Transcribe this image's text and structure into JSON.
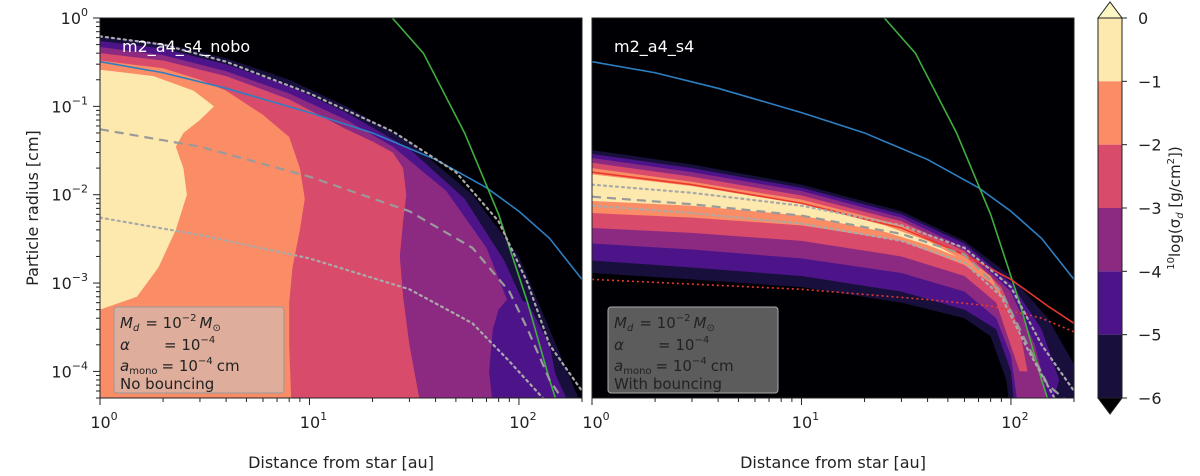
{
  "chart_data": {
    "type": "heatmap",
    "panels": [
      {
        "id": "left",
        "label": "m2_a4_s4_nobo",
        "info": {
          "md_label": "M",
          "md_sub": "d",
          "md_value": "= 10",
          "md_exp": "−2",
          "md_unit": "M",
          "md_unit_sub": "⊙",
          "alpha_label": "α",
          "alpha_value": "= 10",
          "alpha_exp": "−4",
          "amono_label": "a",
          "amono_sub": "mono",
          "amono_value": "= 10",
          "amono_exp": "−4",
          "amono_unit": "cm",
          "note": "No bouncing"
        }
      },
      {
        "id": "right",
        "label": "m2_a4_s4",
        "info": {
          "md_label": "M",
          "md_sub": "d",
          "md_value": "= 10",
          "md_exp": "−2",
          "md_unit": "M",
          "md_unit_sub": "⊙",
          "alpha_label": "α",
          "alpha_value": "= 10",
          "alpha_exp": "−4",
          "amono_label": "a",
          "amono_sub": "mono",
          "amono_value": "= 10",
          "amono_exp": "−4",
          "amono_unit": "cm",
          "note": "With bouncing"
        }
      }
    ],
    "x_axis": {
      "label": "Distance from star [au]",
      "scale": "log",
      "range": [
        1,
        200
      ],
      "ticks": [
        {
          "base": "10",
          "exp": "0",
          "value": 1
        },
        {
          "base": "10",
          "exp": "1",
          "value": 10
        },
        {
          "base": "10",
          "exp": "2",
          "value": 100
        }
      ]
    },
    "y_axis": {
      "label": "Particle radius [cm]",
      "scale": "log",
      "range": [
        5e-05,
        1
      ],
      "ticks": [
        {
          "base": "10",
          "exp": "0",
          "value": 1
        },
        {
          "base": "10",
          "exp": "−1",
          "value": 0.1
        },
        {
          "base": "10",
          "exp": "−2",
          "value": 0.01
        },
        {
          "base": "10",
          "exp": "−3",
          "value": 0.001
        },
        {
          "base": "10",
          "exp": "−4",
          "value": 0.0001
        }
      ]
    },
    "colorbar": {
      "label_prefix": "10",
      "label_main": "log(σ",
      "label_sub": "d",
      "label_rest": " [g/cm",
      "label_sup": "2",
      "label_end": "])",
      "ticks": [
        "0",
        "−1",
        "−2",
        "−3",
        "−4",
        "−5",
        "−6"
      ],
      "levels": [
        {
          "min": -1,
          "max": 0,
          "color": "#fde8ad"
        },
        {
          "min": -2,
          "max": -1,
          "color": "#fa8c66"
        },
        {
          "min": -3,
          "max": -2,
          "color": "#d94b6a"
        },
        {
          "min": -4,
          "max": -3,
          "color": "#8c2a82"
        },
        {
          "min": -5,
          "max": -4,
          "color": "#4d1489"
        },
        {
          "min": -6,
          "max": -5,
          "color": "#180f3d"
        }
      ],
      "extend_high_color": "#fcf6c4",
      "extend_low_color": "#000004"
    },
    "lines": [
      {
        "name": "blue",
        "color": "#2d7fc1"
      },
      {
        "name": "green",
        "color": "#3fae3f"
      },
      {
        "name": "gray dashed",
        "color": "#9a9a9a"
      },
      {
        "name": "gray dotted",
        "color": "#aaaaaa"
      },
      {
        "name": "red",
        "color": "#e8382d"
      }
    ],
    "background_color": "#000004"
  }
}
